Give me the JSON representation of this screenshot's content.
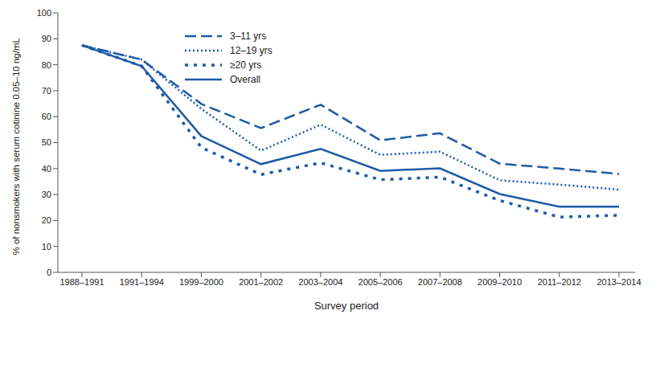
{
  "chart_data": {
    "type": "line",
    "x_label": "Survey period",
    "y_label": "% of nonsmokers with serum cotinine 0.05–10 ng/mL",
    "categories": [
      "1988–1991",
      "1991–1994",
      "1999–2000",
      "2001–2002",
      "2003–2004",
      "2005–2006",
      "2007–2008",
      "2009–2010",
      "2011–2012",
      "2013–2014"
    ],
    "ylim": [
      0,
      100
    ],
    "yticks": [
      0,
      10,
      20,
      30,
      40,
      50,
      60,
      70,
      80,
      90,
      100
    ],
    "grid": false,
    "legend": "upper left",
    "series": [
      {
        "name": "3–11 yrs",
        "color": "#1f5ba6",
        "line_style": "dashed",
        "values": [
          87.5,
          82,
          64.9,
          55.6,
          64.6,
          50.9,
          53.6,
          41.9,
          40,
          37.9
        ]
      },
      {
        "name": "12–19 yrs",
        "color": "#1f5ba6",
        "line_style": "dotted",
        "values": [
          87.5,
          82,
          63,
          46.9,
          56.9,
          45.3,
          46.5,
          35.5,
          33.8,
          31.9
        ]
      },
      {
        "name": "≥20 yrs",
        "color": "#1f5ba6",
        "line_style": "loosely dotted",
        "values": [
          87.5,
          79.5,
          48.1,
          37.7,
          42.2,
          35.7,
          36.7,
          27.7,
          21.3,
          22
        ]
      },
      {
        "name": "Overall",
        "color": "#1f5ba6",
        "line_style": "solid",
        "values": [
          87.5,
          79.5,
          52.5,
          41.7,
          47.6,
          39.1,
          40.1,
          30.2,
          25.3,
          25.3
        ]
      }
    ]
  }
}
